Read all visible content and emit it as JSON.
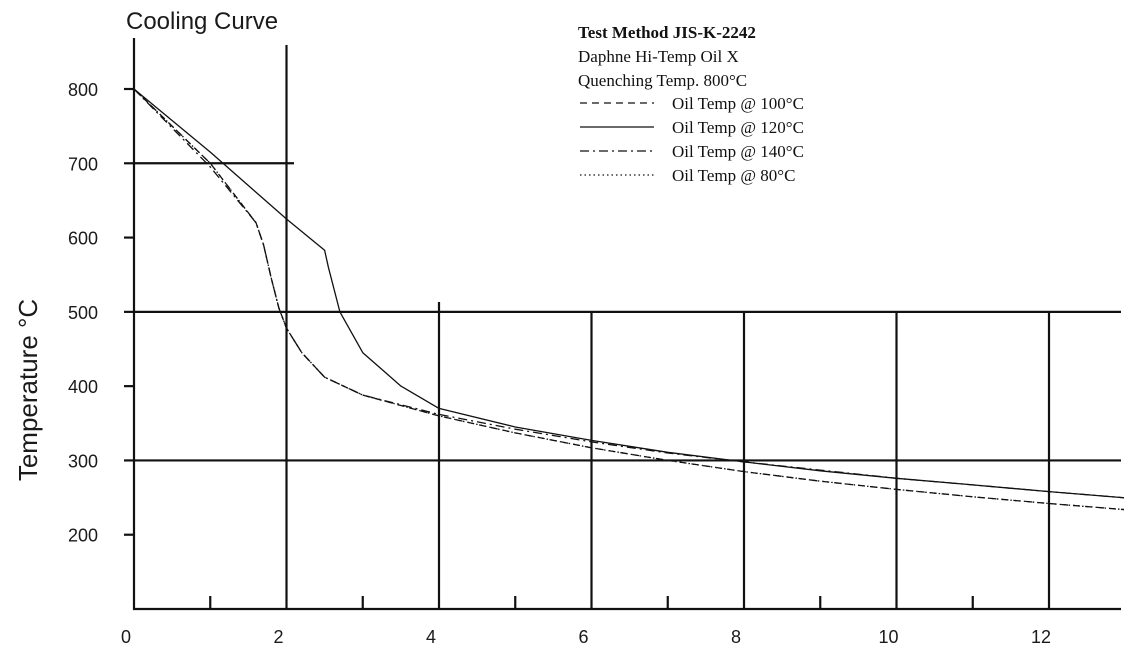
{
  "chart_data": {
    "type": "line",
    "title": "Cooling Curve",
    "xlabel": "",
    "ylabel": "Temperature °C",
    "xlim": [
      0,
      13.4
    ],
    "ylim": [
      100,
      850
    ],
    "x_ticks": [
      "0",
      "2",
      "4",
      "6",
      "8",
      "10",
      "12"
    ],
    "y_ticks": [
      "200",
      "300",
      "400",
      "500",
      "600",
      "700",
      "800"
    ],
    "legend": {
      "header_lines": [
        "Test Method JIS-K-2242",
        "Daphne Hi-Temp Oil X",
        "Quenching Temp. 800°C"
      ],
      "placement": "top-right"
    },
    "series": [
      {
        "name": "Oil Temp @ 100°C",
        "line_style": "dashed",
        "x": [
          0,
          1,
          1.6,
          1.7,
          1.8,
          1.9,
          2,
          2.2,
          2.5,
          3,
          4,
          5,
          6,
          7,
          8,
          9,
          10,
          11,
          12,
          13.2
        ],
        "y": [
          800,
          700,
          620,
          590,
          545,
          505,
          478,
          445,
          412,
          388,
          360,
          337,
          317,
          300,
          285,
          272,
          261,
          251,
          242,
          232
        ]
      },
      {
        "name": "Oil Temp @ 120°C",
        "line_style": "solid",
        "x": [
          0,
          1,
          2,
          2.5,
          2.55,
          2.7,
          3,
          3.5,
          4,
          5,
          6,
          7,
          8,
          9,
          10,
          11,
          12,
          13.2
        ],
        "y": [
          800,
          715,
          625,
          583,
          560,
          500,
          445,
          400,
          370,
          345,
          327,
          311,
          298,
          286,
          276,
          267,
          258,
          248
        ]
      },
      {
        "name": "Oil Temp @ 140°C",
        "line_style": "dash-dot",
        "x": [
          0,
          1,
          1.6,
          1.7,
          1.8,
          1.9,
          2,
          2.2,
          2.5,
          3,
          4,
          5,
          6,
          7,
          8,
          9,
          10,
          11,
          12,
          13.2
        ],
        "y": [
          800,
          695,
          620,
          590,
          545,
          505,
          478,
          445,
          412,
          388,
          362,
          342,
          325,
          310,
          298,
          287,
          276,
          267,
          258,
          248
        ]
      },
      {
        "name": "Oil Temp @ 80°C",
        "line_style": "dotted",
        "x": [
          0,
          1,
          1.6,
          1.7,
          1.8,
          1.9,
          2,
          2.2,
          2.5,
          3,
          4,
          5,
          6,
          7,
          8,
          9,
          10,
          11,
          12,
          13.2
        ],
        "y": [
          800,
          700,
          620,
          590,
          545,
          505,
          478,
          445,
          412,
          388,
          360,
          337,
          317,
          300,
          285,
          272,
          261,
          251,
          242,
          232
        ]
      }
    ]
  }
}
